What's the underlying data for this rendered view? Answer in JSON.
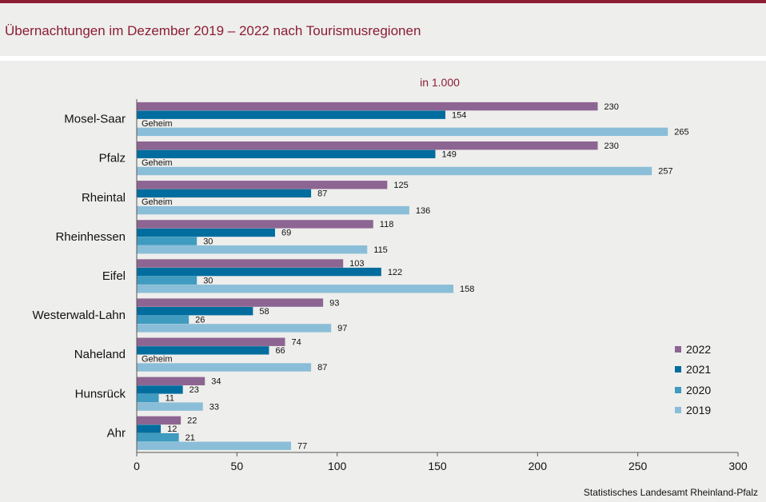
{
  "header": {
    "title": "Übernachtungen im Dezember 2019 – 2022 nach Tourismusregionen"
  },
  "footer": {
    "source": "Statistisches Landesamt  Rheinland-Pfalz"
  },
  "colors": {
    "accent": "#8c1d35",
    "2022": "#8d6592",
    "2021": "#006d9e",
    "2020": "#3f9bbf",
    "2019": "#8abed8"
  },
  "chart_data": {
    "type": "bar",
    "orientation": "horizontal",
    "title": "Übernachtungen im Dezember 2019 – 2022 nach Tourismusregionen",
    "unit_label": "in 1.000",
    "categories": [
      "Mosel-Saar",
      "Pfalz",
      "Rheintal",
      "Rheinhessen",
      "Eifel",
      "Westerwald-Lahn",
      "Naheland",
      "Hunsrück",
      "Ahr"
    ],
    "series": [
      {
        "name": "2022",
        "values": [
          230,
          230,
          125,
          118,
          103,
          93,
          74,
          34,
          22
        ]
      },
      {
        "name": "2021",
        "values": [
          154,
          149,
          87,
          69,
          122,
          58,
          66,
          23,
          12
        ]
      },
      {
        "name": "2020",
        "values": [
          null,
          null,
          null,
          30,
          30,
          26,
          null,
          11,
          21
        ]
      },
      {
        "name": "2019",
        "values": [
          265,
          257,
          136,
          115,
          158,
          97,
          87,
          33,
          77
        ]
      }
    ],
    "missing_label": "Geheim",
    "xlim": [
      0,
      300
    ],
    "x_ticks": [
      0,
      50,
      100,
      150,
      200,
      250,
      300
    ],
    "legend_position": "bottom-right",
    "grid": false
  }
}
